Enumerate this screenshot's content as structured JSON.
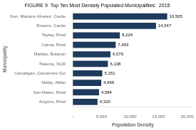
{
  "chart_data": {
    "type": "bar",
    "orientation": "horizontal",
    "title": "FIGURE 9  Top Ten Most Densely Populated Municipalities:  2015",
    "xlabel": "Population Density",
    "ylabel": "Municipality",
    "categories": [
      "Angono, Rizal",
      "San Mateo, Rizal",
      "Malay, Aklan",
      "Camaligan, Camarines Sur",
      "Pateros, NCR",
      "Marilao, Bulacan",
      "Cainta, Rizal",
      "Taytay, Rizal",
      "Rosario, Cavite",
      "Gen. Mariano Alvarez, Cavite"
    ],
    "values": [
      4320,
      4584,
      4969,
      5151,
      6138,
      6579,
      7493,
      8224,
      14547,
      16505
    ],
    "value_labels": [
      "4,320",
      "4,584",
      "4,969",
      "5,151",
      "6,138",
      "6,579",
      "7,493",
      "8,224",
      "14,547",
      "16,505"
    ],
    "color": "#1e3a5c",
    "xlim": [
      0,
      21000
    ],
    "xticks": [
      {
        "value": 0,
        "label": "-"
      },
      {
        "value": 5000,
        "label": "5,000"
      },
      {
        "value": 10000,
        "label": "10,000"
      },
      {
        "value": 15000,
        "label": "15,000"
      },
      {
        "value": 20000,
        "label": "20,000"
      }
    ],
    "grid": false,
    "data_labels": true
  }
}
